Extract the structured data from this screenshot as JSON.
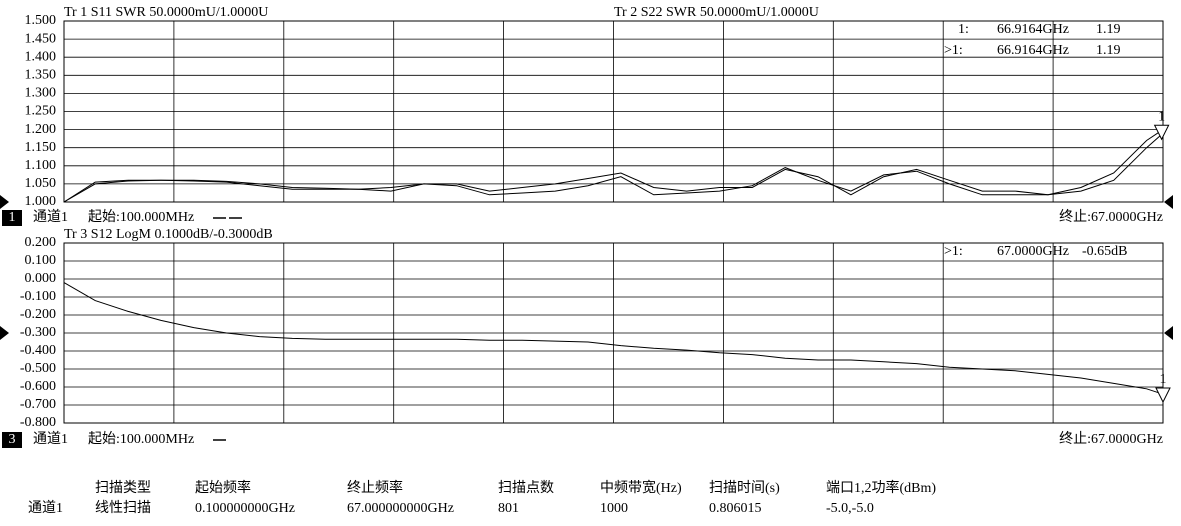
{
  "chart_data": [
    {
      "type": "line",
      "x": [
        0.1,
        2,
        4,
        6,
        8,
        10,
        12,
        14,
        16,
        18,
        20,
        22,
        24,
        26,
        28,
        30,
        32,
        34,
        36,
        38,
        40,
        42,
        44,
        46,
        48,
        50,
        52,
        54,
        56,
        58,
        60,
        62,
        64,
        66,
        67
      ],
      "xlim": [
        0.1,
        67
      ],
      "series": [
        {
          "name": "Tr 1  S11 SWR 50.0000mU/1.0000U",
          "color": "#000000",
          "values": [
            1.0,
            1.055,
            1.06,
            1.06,
            1.058,
            1.055,
            1.045,
            1.035,
            1.035,
            1.035,
            1.03,
            1.05,
            1.05,
            1.03,
            1.04,
            1.05,
            1.065,
            1.08,
            1.04,
            1.03,
            1.04,
            1.04,
            1.09,
            1.07,
            1.02,
            1.07,
            1.09,
            1.06,
            1.03,
            1.03,
            1.02,
            1.04,
            1.08,
            1.17,
            1.2
          ]
        },
        {
          "name": "Tr 2  S22 SWR 50.0000mU/1.0000U",
          "color": "#000000",
          "values": [
            1.0,
            1.05,
            1.058,
            1.06,
            1.06,
            1.057,
            1.05,
            1.04,
            1.038,
            1.035,
            1.04,
            1.05,
            1.045,
            1.02,
            1.025,
            1.03,
            1.045,
            1.07,
            1.02,
            1.025,
            1.03,
            1.045,
            1.095,
            1.06,
            1.03,
            1.075,
            1.085,
            1.05,
            1.02,
            1.02,
            1.02,
            1.03,
            1.06,
            1.15,
            1.19
          ]
        }
      ],
      "ylim": [
        1.0,
        1.5
      ],
      "yticks": [
        {
          "value": 1.0,
          "label": "1.000"
        },
        {
          "value": 1.05,
          "label": "1.050"
        },
        {
          "value": 1.1,
          "label": "1.100"
        },
        {
          "value": 1.15,
          "label": "1.150"
        },
        {
          "value": 1.2,
          "label": "1.200"
        },
        {
          "value": 1.25,
          "label": "1.250"
        },
        {
          "value": 1.3,
          "label": "1.300"
        },
        {
          "value": 1.35,
          "label": "1.350"
        },
        {
          "value": 1.4,
          "label": "1.400"
        },
        {
          "value": 1.45,
          "label": "1.450"
        },
        {
          "value": 1.5,
          "label": "1.500"
        }
      ],
      "grid": true,
      "markers": [
        {
          "id": "1",
          "x": 66.9164,
          "value": 1.19
        }
      ],
      "readouts": [
        {
          "name": "1:",
          "x_label": "66.9164GHz",
          "value": 1.19
        },
        {
          "name": ">1:",
          "x_label": "66.9164GHz",
          "value": 1.19
        }
      ],
      "channel_number": "1",
      "channel": "通道1",
      "start_label": "起始:100.000MHz",
      "stop_label": "终止:67.0000GHz"
    },
    {
      "type": "line",
      "x": [
        0.1,
        2,
        4,
        6,
        8,
        10,
        12,
        14,
        16,
        18,
        20,
        22,
        24,
        26,
        28,
        30,
        32,
        34,
        36,
        38,
        40,
        42,
        44,
        46,
        48,
        50,
        52,
        54,
        56,
        58,
        60,
        62,
        64,
        66,
        67
      ],
      "xlim": [
        0.1,
        67
      ],
      "series": [
        {
          "name": "Tr 3  S12 LogM 0.1000dB/-0.3000dB",
          "color": "#000000",
          "values": [
            -0.02,
            -0.12,
            -0.18,
            -0.23,
            -0.27,
            -0.3,
            -0.32,
            -0.33,
            -0.335,
            -0.335,
            -0.335,
            -0.335,
            -0.335,
            -0.34,
            -0.34,
            -0.345,
            -0.35,
            -0.37,
            -0.385,
            -0.395,
            -0.41,
            -0.42,
            -0.44,
            -0.45,
            -0.45,
            -0.46,
            -0.47,
            -0.49,
            -0.5,
            -0.51,
            -0.53,
            -0.55,
            -0.58,
            -0.61,
            -0.64
          ]
        }
      ],
      "ylim": [
        -0.8,
        0.2
      ],
      "yticks": [
        {
          "value": -0.8,
          "label": "-0.800"
        },
        {
          "value": -0.7,
          "label": "-0.700"
        },
        {
          "value": -0.6,
          "label": "-0.600"
        },
        {
          "value": -0.5,
          "label": "-0.500"
        },
        {
          "value": -0.4,
          "label": "-0.400"
        },
        {
          "value": -0.3,
          "label": "-0.300"
        },
        {
          "value": -0.2,
          "label": "-0.200"
        },
        {
          "value": -0.1,
          "label": "-0.100"
        },
        {
          "value": 0.0,
          "label": "0.000"
        },
        {
          "value": 0.1,
          "label": "0.100"
        },
        {
          "value": 0.2,
          "label": "0.200"
        }
      ],
      "grid": true,
      "markers": [
        {
          "id": "1",
          "x": 67.0,
          "value": -0.65
        }
      ],
      "readouts": [
        {
          "name": ">1:",
          "x_label": "67.0000GHz",
          "value": -0.65,
          "value_label": "-0.65dB"
        }
      ],
      "channel_number": "3",
      "channel": "通道1",
      "start_label": "起始:100.000MHz",
      "stop_label": "终止:67.0000GHz"
    }
  ],
  "sweep_table": {
    "headers": [
      "扫描类型",
      "起始频率",
      "终止频率",
      "扫描点数",
      "中频带宽(Hz)",
      "扫描时间(s)",
      "端口1,2功率(dBm)"
    ],
    "row_label": "通道1",
    "row": [
      "线性扫描",
      "0.100000000GHz",
      "67.000000000GHz",
      "801",
      "1000",
      "0.806015",
      "-5.0,-5.0"
    ]
  }
}
